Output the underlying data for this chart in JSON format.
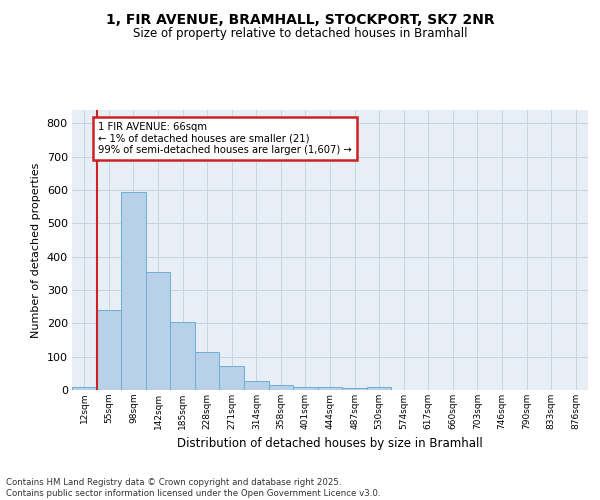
{
  "title_line1": "1, FIR AVENUE, BRAMHALL, STOCKPORT, SK7 2NR",
  "title_line2": "Size of property relative to detached houses in Bramhall",
  "xlabel": "Distribution of detached houses by size in Bramhall",
  "ylabel": "Number of detached properties",
  "bins": [
    "12sqm",
    "55sqm",
    "98sqm",
    "142sqm",
    "185sqm",
    "228sqm",
    "271sqm",
    "314sqm",
    "358sqm",
    "401sqm",
    "444sqm",
    "487sqm",
    "530sqm",
    "574sqm",
    "617sqm",
    "660sqm",
    "703sqm",
    "746sqm",
    "790sqm",
    "833sqm",
    "876sqm"
  ],
  "values": [
    8,
    240,
    595,
    355,
    205,
    115,
    72,
    28,
    15,
    10,
    8,
    5,
    8,
    0,
    0,
    0,
    0,
    0,
    0,
    0,
    0
  ],
  "bar_color": "#b8d0e8",
  "bar_edgecolor": "#6aaed6",
  "grid_color": "#c8d4e0",
  "background_color": "#e8eef5",
  "vline_color": "#cc2222",
  "annotation_text": "1 FIR AVENUE: 66sqm\n← 1% of detached houses are smaller (21)\n99% of semi-detached houses are larger (1,607) →",
  "annotation_box_color": "#cc2222",
  "ylim": [
    0,
    840
  ],
  "yticks": [
    0,
    100,
    200,
    300,
    400,
    500,
    600,
    700,
    800
  ],
  "footnote": "Contains HM Land Registry data © Crown copyright and database right 2025.\nContains public sector information licensed under the Open Government Licence v3.0."
}
